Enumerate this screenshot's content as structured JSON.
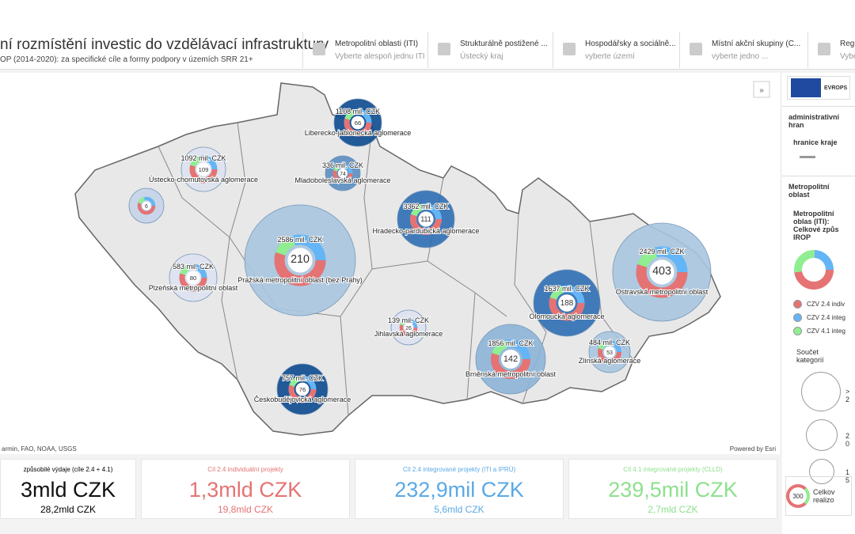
{
  "header": {
    "title": "ní rozmístění investic do vzdělávací infrastruktury",
    "subtitle": "OP (2014-2020): za specifické cíle a formy podpory v územích SRR 21+"
  },
  "filters": [
    {
      "label": "Metropolitní oblasti (ITI)",
      "value": "Vyberte alespoň jednu ITI"
    },
    {
      "label": "Strukturálně postižené ...",
      "value": "Ústecký kraj"
    },
    {
      "label": "Hospodářsky a sociálně...",
      "value": "vyberte území"
    },
    {
      "label": "Místní akční skupiny (C...",
      "value": "vyberte jedno ..."
    },
    {
      "label": "Regio",
      "value": "Vybe"
    }
  ],
  "map": {
    "markers": [
      {
        "name": "Liberecko-jablonecká aglomerace",
        "amount": "1108 mil. CZK",
        "count": "66"
      },
      {
        "name": "Ústecko-chomutovská aglomerace",
        "amount": "1092 mil. CZK",
        "count": "109"
      },
      {
        "name": "Mladoboleslavská aglomerace",
        "amount": "336 mil. CZK",
        "count": "74"
      },
      {
        "name": "Hradecko-pardubická aglomerace",
        "amount": "3362 mil. CZK",
        "count": "111"
      },
      {
        "name": "Pražská metropolitní oblast (bez Prahy)",
        "amount": "2586 mil. CZK",
        "count": "210"
      },
      {
        "name": "Plzeňská metropolitní oblast",
        "amount": "583 mil. CZK",
        "count": "80"
      },
      {
        "count": "6"
      },
      {
        "name": "Ostravská metropolitní oblast",
        "amount": "2429 mil. CZK",
        "count": "403"
      },
      {
        "name": "Olomoucká aglomerace",
        "amount": "1637 mil. CZK",
        "count": "188"
      },
      {
        "name": "Jihlavská aglomerace",
        "amount": "139 mil. CZK",
        "count": "26"
      },
      {
        "name": "Brněnská metropolitní oblast",
        "amount": "1856 mil. CZK",
        "count": "142"
      },
      {
        "name": "Zlínská aglomerace",
        "amount": "484 mil. CZK",
        "count": "53"
      },
      {
        "name": "Českobudějovická aglomerace",
        "amount": "757 mil. CZK",
        "count": "76"
      }
    ],
    "attribution": "armin, FAO, NOAA, USGS",
    "powered": "Powered by Esri"
  },
  "side": {
    "logo": "EVROPS",
    "layer1": "administrativní hran",
    "item1": "hranice kraje",
    "layer2": "Metropolitní oblast",
    "legend_title": "Metropolitní oblas (ITI): Celkové způs IROP",
    "legend": [
      "CZV 2.4 indiv",
      "CZV 2.4 integ",
      "CZV 4.1 integ"
    ],
    "size_title": "Součet kategorií",
    "sizes": [
      "> 2",
      "2 0",
      "1 5"
    ],
    "bottom_count": "300",
    "bottom_text": "Celkov realizo"
  },
  "cards": [
    {
      "title": "způsobilé výdaje (cíle 2.4 + 4.1)",
      "value": "3mld CZK",
      "total": "28,2mld CZK"
    },
    {
      "title": "Cíl 2.4 individuální projekty",
      "value": "1,3mld CZK",
      "total": "19,8mld CZK"
    },
    {
      "title": "Cíl 2.4 integrované projekty (ITI a IPRÚ)",
      "value": "232,9mil CZK",
      "total": "5,6mld CZK"
    },
    {
      "title": "Cíl 4.1 integrované projekty (CLLD)",
      "value": "239,5mil CZK",
      "total": "2,7mld CZK"
    }
  ]
}
